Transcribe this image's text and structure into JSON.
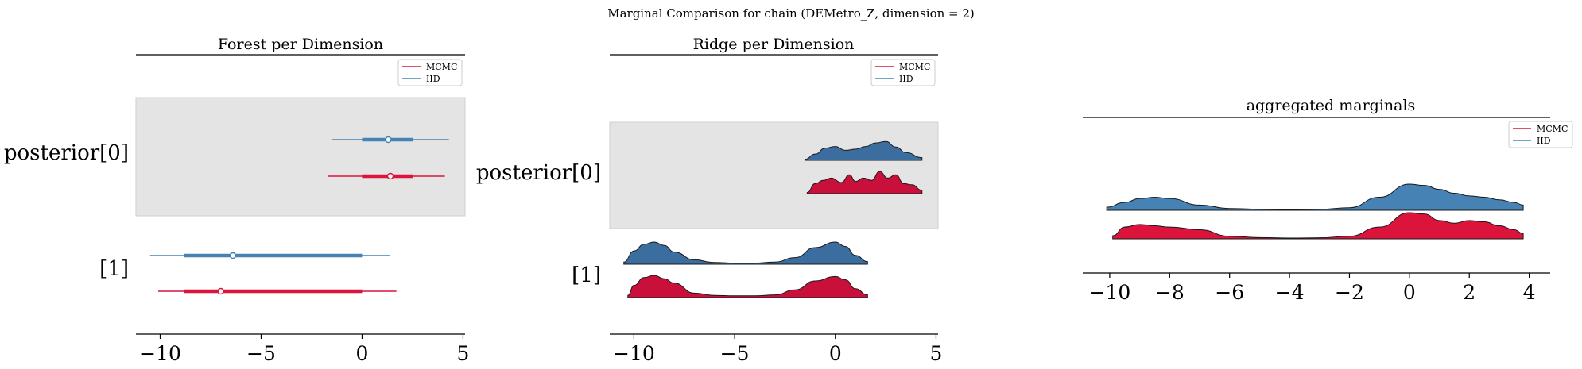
{
  "figure": {
    "suptitle": "Marginal Comparison for chain (DEMetro_Z, dimension = 2)",
    "colors": {
      "MCMC": "#dc143c",
      "IID": "#4682b4",
      "IID_ridge": "#3b6e9e",
      "MCMC_ridge": "#c8103a",
      "band": "#e4e4e4"
    }
  },
  "chart_data": [
    {
      "type": "forest",
      "title": "Forest per Dimension",
      "legend": [
        "MCMC",
        "IID"
      ],
      "legend_position": "top-right",
      "xlim": [
        -11.2,
        5.1
      ],
      "xticks": [
        -10,
        -5,
        0,
        5
      ],
      "xtick_labels": [
        "−10",
        "−5",
        "0",
        "5"
      ],
      "rows": [
        {
          "label": "posterior[0]",
          "IID": {
            "hdi94": [
              -1.5,
              4.3
            ],
            "iqr": [
              0.0,
              2.5
            ],
            "center": 1.3
          },
          "MCMC": {
            "hdi94": [
              -1.7,
              4.1
            ],
            "iqr": [
              0.0,
              2.5
            ],
            "center": 1.4
          }
        },
        {
          "label": "[1]",
          "IID": {
            "hdi94": [
              -10.5,
              1.4
            ],
            "iqr": [
              -8.8,
              0.0
            ],
            "center": -6.4
          },
          "MCMC": {
            "hdi94": [
              -10.1,
              1.7
            ],
            "iqr": [
              -8.8,
              0.0
            ],
            "center": -7.0
          }
        }
      ]
    },
    {
      "type": "ridgeline",
      "title": "Ridge per Dimension",
      "legend": [
        "MCMC",
        "IID"
      ],
      "legend_position": "top-right",
      "xlim": [
        -11.2,
        5.1
      ],
      "xticks": [
        -10,
        -5,
        0,
        5
      ],
      "xtick_labels": [
        "−10",
        "−5",
        "0",
        "5"
      ],
      "rows": [
        {
          "label": "posterior[0]",
          "IID": {
            "x": [
              -1.5,
              -1.0,
              -0.5,
              0.0,
              0.5,
              1.0,
              1.5,
              2.0,
              2.5,
              3.0,
              3.5,
              4.3
            ],
            "density": [
              0.05,
              0.28,
              0.55,
              0.62,
              0.45,
              0.5,
              0.62,
              0.78,
              0.85,
              0.6,
              0.35,
              0.12
            ]
          },
          "MCMC": {
            "x": [
              -1.4,
              -1.0,
              -0.6,
              -0.2,
              0.3,
              0.7,
              1.0,
              1.4,
              1.8,
              2.2,
              2.6,
              3.0,
              3.4,
              3.8,
              4.3
            ],
            "density": [
              0.05,
              0.45,
              0.6,
              0.7,
              0.5,
              0.85,
              0.55,
              0.7,
              0.6,
              1.0,
              0.7,
              0.85,
              0.45,
              0.4,
              0.15
            ]
          }
        },
        {
          "label": "[1]",
          "IID": {
            "x": [
              -10.5,
              -10.0,
              -9.5,
              -9.0,
              -8.5,
              -8.0,
              -7.0,
              -6.0,
              -5.0,
              -4.0,
              -3.0,
              -2.0,
              -1.0,
              0.0,
              0.5,
              1.0,
              1.6
            ],
            "density": [
              0.1,
              0.6,
              0.9,
              1.0,
              0.85,
              0.55,
              0.2,
              0.08,
              0.05,
              0.05,
              0.1,
              0.3,
              0.75,
              1.0,
              0.8,
              0.4,
              0.12
            ]
          },
          "MCMC": {
            "x": [
              -10.3,
              -10.0,
              -9.5,
              -9.0,
              -8.5,
              -8.0,
              -7.0,
              -6.0,
              -5.0,
              -4.0,
              -3.0,
              -2.0,
              -1.0,
              0.0,
              0.5,
              1.0,
              1.6
            ],
            "density": [
              0.1,
              0.55,
              0.9,
              1.0,
              0.85,
              0.65,
              0.2,
              0.1,
              0.08,
              0.08,
              0.12,
              0.35,
              0.75,
              0.95,
              0.8,
              0.4,
              0.12
            ]
          }
        }
      ]
    },
    {
      "type": "ridgeline",
      "title": "aggregated marginals",
      "legend": [
        "MCMC",
        "IID"
      ],
      "legend_position": "top-right",
      "xlim": [
        -10.9,
        4.7
      ],
      "xticks": [
        -10,
        -8,
        -6,
        -4,
        -2,
        0,
        2,
        4
      ],
      "xtick_labels": [
        "−10",
        "−8",
        "−6",
        "−4",
        "−2",
        "0",
        "2",
        "4"
      ],
      "rows": [
        {
          "label": "",
          "IID": {
            "x": [
              -10.1,
              -9.5,
              -9.0,
              -8.5,
              -8.0,
              -7.0,
              -6.0,
              -5.0,
              -4.0,
              -3.0,
              -2.0,
              -1.0,
              0.0,
              0.5,
              1.0,
              1.5,
              2.0,
              2.5,
              3.0,
              3.5,
              3.8
            ],
            "density": [
              0.12,
              0.3,
              0.45,
              0.5,
              0.45,
              0.2,
              0.07,
              0.04,
              0.03,
              0.04,
              0.1,
              0.5,
              1.0,
              0.95,
              0.8,
              0.65,
              0.55,
              0.5,
              0.4,
              0.3,
              0.2
            ]
          },
          "MCMC": {
            "x": [
              -9.9,
              -9.5,
              -9.0,
              -8.5,
              -8.0,
              -7.0,
              -6.0,
              -5.0,
              -4.0,
              -3.0,
              -2.0,
              -1.0,
              0.0,
              0.5,
              1.0,
              1.5,
              2.0,
              2.5,
              3.0,
              3.5,
              3.8
            ],
            "density": [
              0.12,
              0.45,
              0.55,
              0.5,
              0.45,
              0.35,
              0.1,
              0.05,
              0.03,
              0.04,
              0.1,
              0.45,
              1.0,
              0.95,
              0.7,
              0.6,
              0.7,
              0.65,
              0.5,
              0.35,
              0.2
            ]
          }
        }
      ]
    }
  ]
}
